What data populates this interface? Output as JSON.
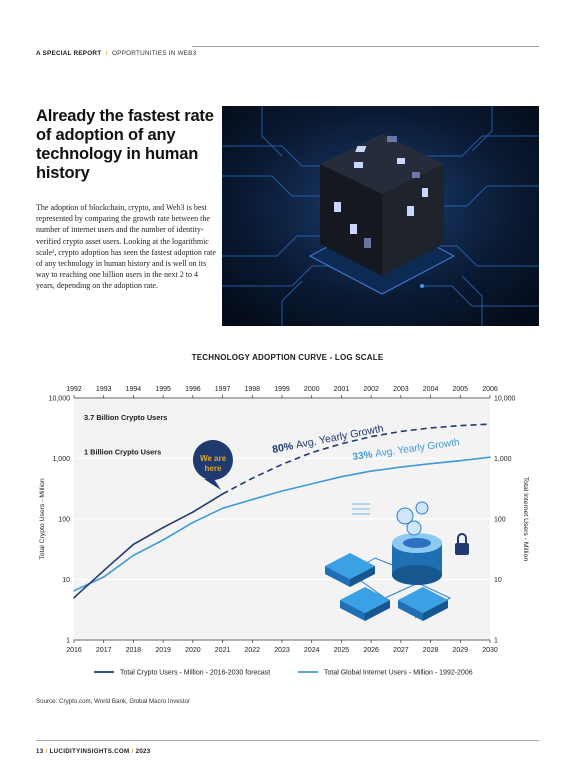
{
  "header": {
    "section": "A SPECIAL REPORT",
    "separator": "/",
    "subsection": "OPPORTUNITIES IN WEB3"
  },
  "article": {
    "headline": "Already the fastest rate of adoption of any technology in human history",
    "body": "The adoption of blockchain, crypto, and Web3 is best represented by comparing the growth rate between the number of internet users and the number of identity-verified crypto asset users. Looking at the logarithmic scale², crypto adoption has seen the fastest adoption rate of any technology in human history and is well on its way to reaching one billion users in the next 2 to 4 years, depending on the adoption rate."
  },
  "chart_data": {
    "type": "line",
    "title": "TECHNOLOGY ADOPTION CURVE - LOG SCALE",
    "scale": "log",
    "ylim": [
      1,
      10000
    ],
    "y_ticks": [
      "1",
      "10",
      "100",
      "1,000",
      "10,000"
    ],
    "ylabel_left": "Total Crypto Users - Million",
    "ylabel_right": "Total Internet Users - Million",
    "x_top_ticks": [
      "1992",
      "1993",
      "1994",
      "1995",
      "1996",
      "1997",
      "1998",
      "1999",
      "2000",
      "2001",
      "2002",
      "2003",
      "2004",
      "2005",
      "2006"
    ],
    "x_bottom_ticks": [
      "2016",
      "2017",
      "2018",
      "2019",
      "2020",
      "2021",
      "2022",
      "2023",
      "2024",
      "2025",
      "2026",
      "2027",
      "2028",
      "2029",
      "2030"
    ],
    "reference_lines": [
      {
        "label": "3.7 Billion Crypto Users",
        "value": 3700
      },
      {
        "label": "1 Billion Crypto Users",
        "value": 1000
      }
    ],
    "annotations": [
      {
        "text": "We are here"
      },
      {
        "pct": "80%",
        "text": "Avg. Yearly Growth",
        "color": "#1f3a6e"
      },
      {
        "pct": "33%",
        "text": "Avg. Yearly Growth",
        "color": "#3f9ad6"
      }
    ],
    "series": [
      {
        "name": "Total Crypto Users - Million - 2016-2030 forecast",
        "color": "#1f3a6e",
        "x": [
          2016,
          2017,
          2018,
          2019,
          2020,
          2021
        ],
        "values": [
          5,
          14,
          38,
          72,
          130,
          260
        ],
        "forecast": {
          "x": [
            2021,
            2022,
            2023,
            2024,
            2025,
            2026,
            2027,
            2028,
            2029,
            2030
          ],
          "values": [
            260,
            470,
            800,
            1250,
            1750,
            2300,
            2800,
            3200,
            3500,
            3700
          ]
        }
      },
      {
        "name": "Total Global Internet Users - Million - 1992-2006",
        "color": "#3f9ad6",
        "x": [
          1992,
          1993,
          1994,
          1995,
          1996,
          1997,
          1998,
          1999,
          2000,
          2001,
          2002,
          2003,
          2004,
          2005,
          2006
        ],
        "values": [
          6.5,
          11,
          25,
          45,
          88,
          150,
          210,
          290,
          380,
          500,
          620,
          720,
          820,
          920,
          1050
        ]
      }
    ]
  },
  "source": "Source: Crypto.com, World Bank, Global Macro Investor",
  "footer": {
    "page": "13",
    "sep": "/",
    "site": "LUCIDITYINSIGHTS.COM",
    "year": "2023"
  },
  "colors": {
    "accent": "#e0a528",
    "crypto": "#1f3a6e",
    "internet": "#3f9ad6"
  }
}
